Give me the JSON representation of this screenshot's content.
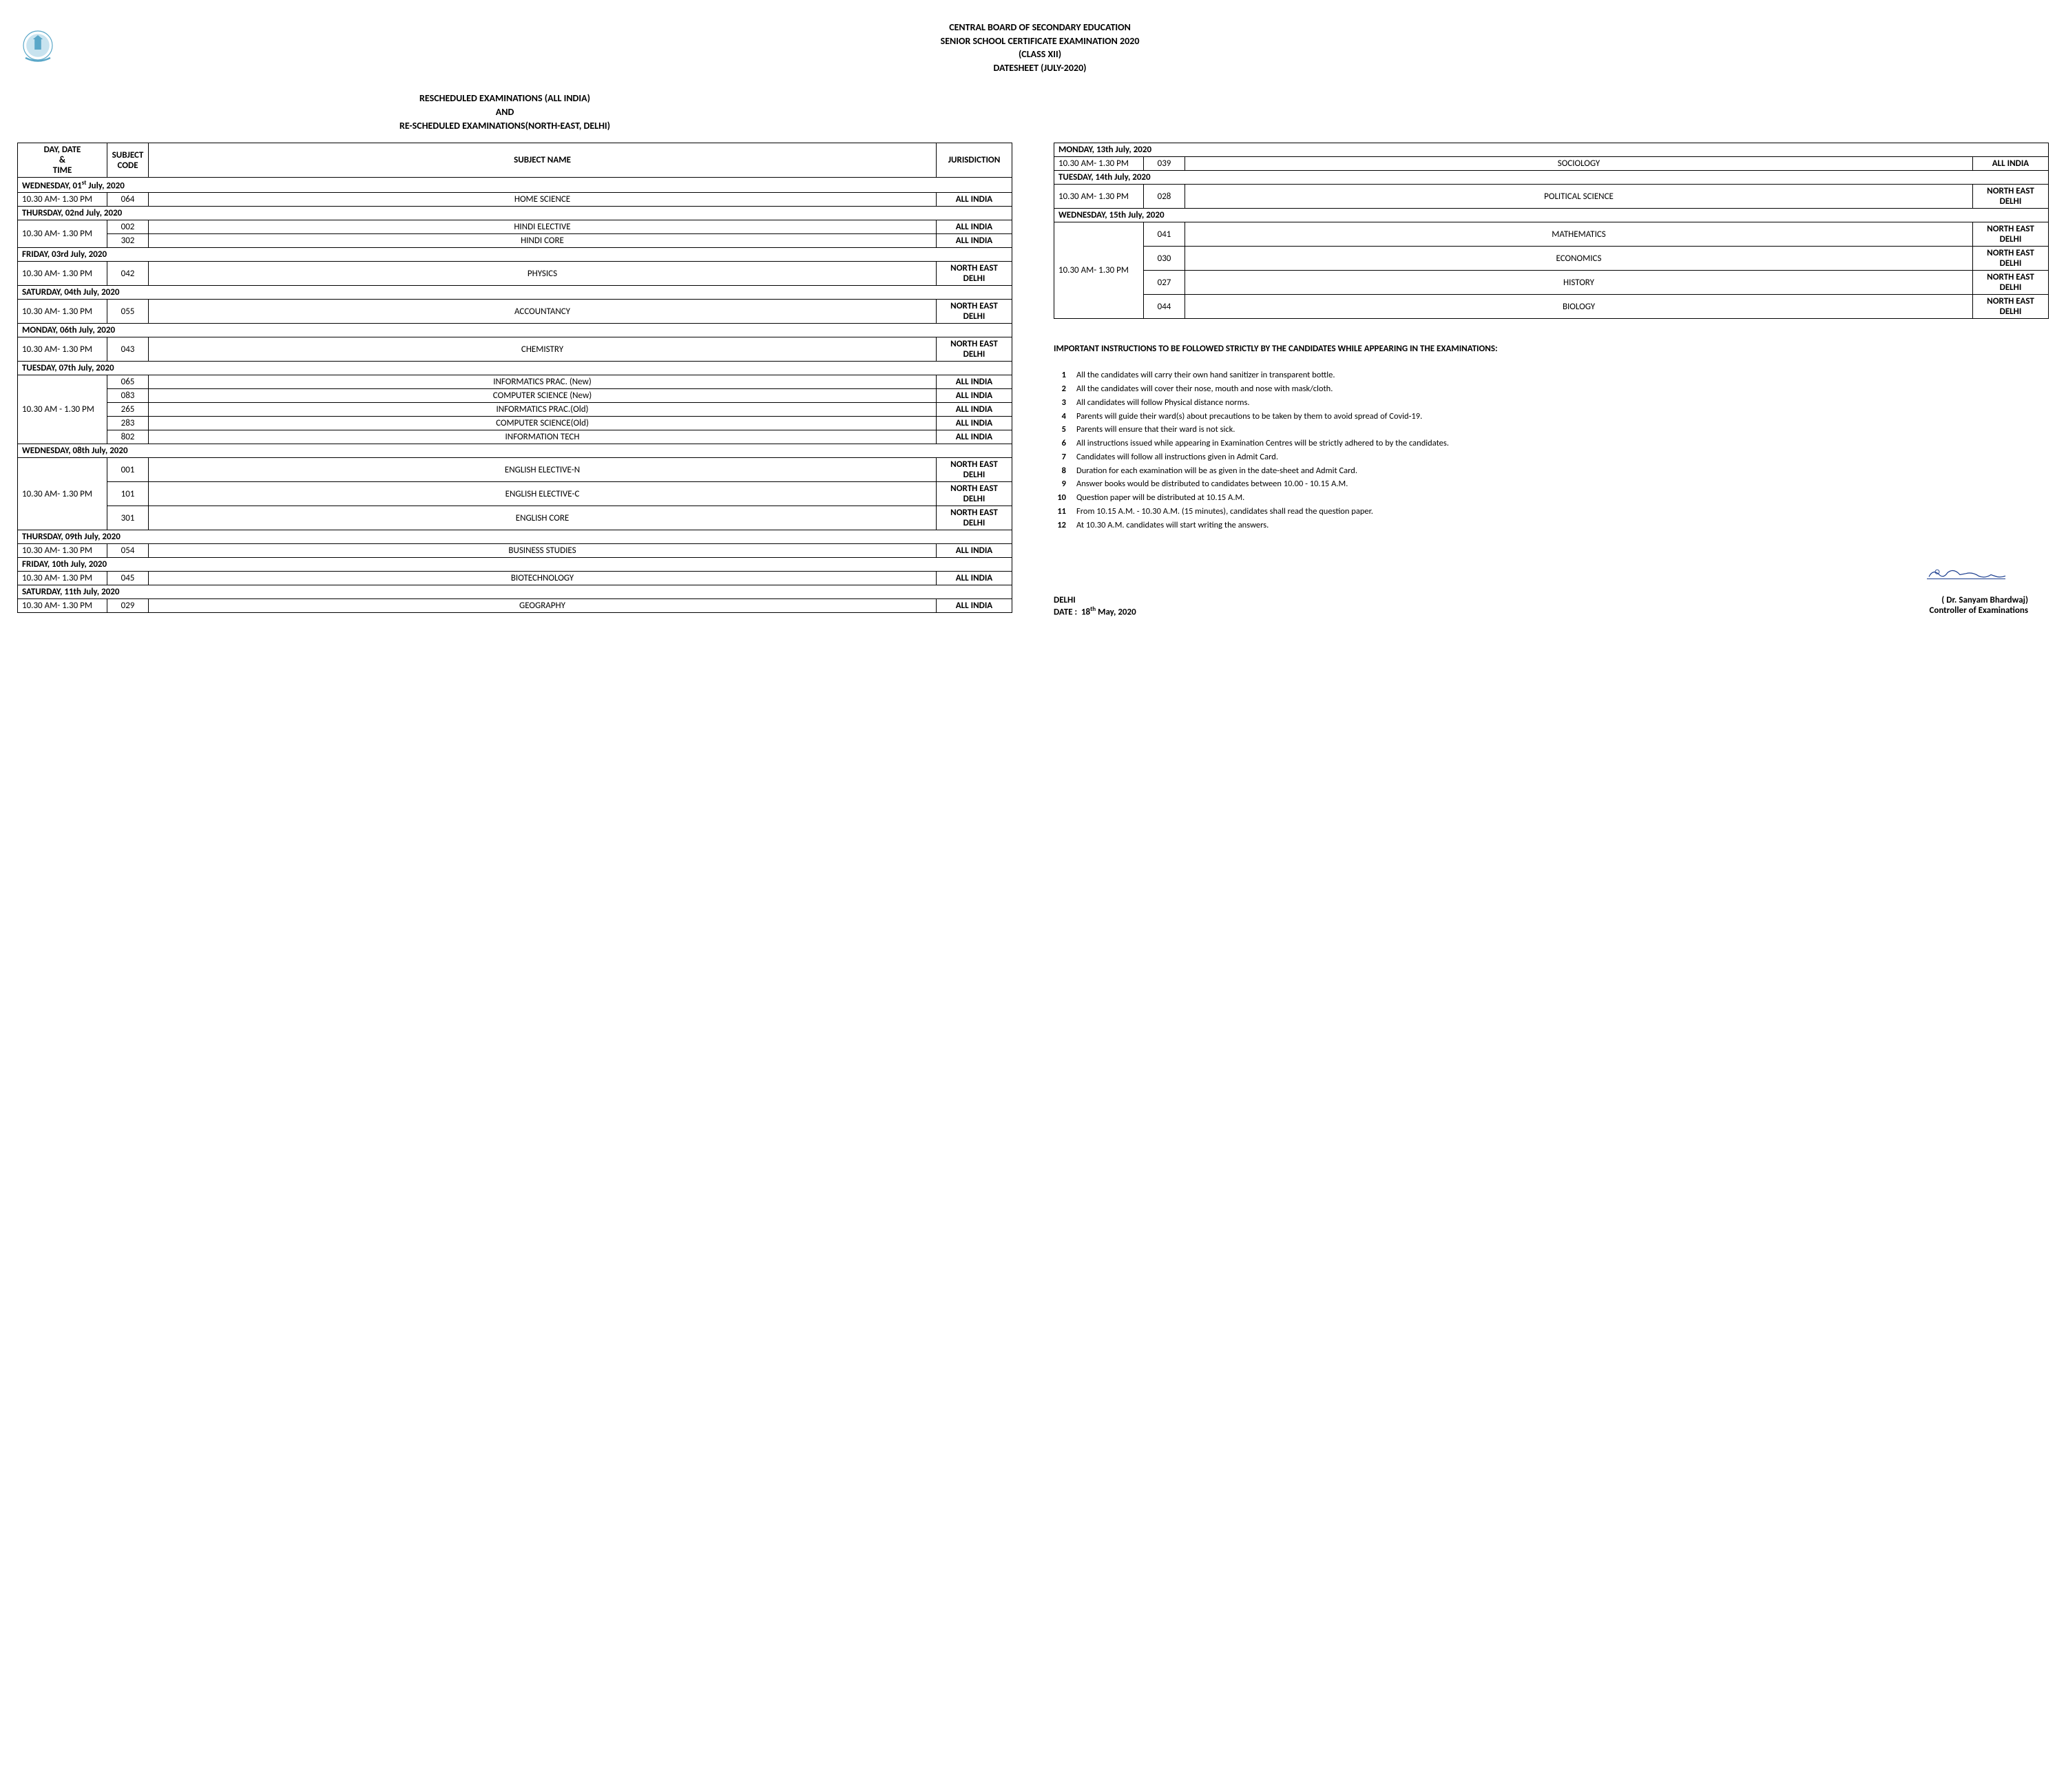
{
  "header": {
    "line1": "CENTRAL BOARD OF SECONDARY EDUCATION",
    "line2": "SENIOR SCHOOL CERTIFICATE EXAMINATION 2020",
    "line3": "(CLASS XII)",
    "line4": "DATESHEET (JULY-2020)"
  },
  "subheader": {
    "line1": "RESCHEDULED EXAMINATIONS (ALL INDIA)",
    "line2": "AND",
    "line3": "RE-SCHEDULED EXAMINATIONS(NORTH-EAST, DELHI)"
  },
  "columns": [
    "DAY, DATE & TIME",
    "SUBJECT CODE",
    "SUBJECT NAME",
    "JURISDICTION"
  ],
  "jurisdictions": {
    "all_india": "ALL INDIA",
    "ne_delhi_1": "NORTH EAST",
    "ne_delhi_2": "DELHI"
  },
  "timeslot": "10.30 AM- 1.30 PM",
  "timeslot2": "10.30 AM - 1.30 PM",
  "schedule_left": [
    {
      "type": "day",
      "label": "WEDNESDAY, 01",
      "sup": "st",
      "suffix": " July, 2020"
    },
    {
      "type": "row",
      "rowspan": 1,
      "time": "10.30 AM- 1.30 PM",
      "code": "064",
      "subject": "HOME SCIENCE",
      "juris": "ALL INDIA"
    },
    {
      "type": "day",
      "label": "THURSDAY, 02nd July, 2020"
    },
    {
      "type": "row",
      "rowspan": 2,
      "time": "10.30 AM- 1.30 PM",
      "code": "002",
      "subject": "HINDI ELECTIVE",
      "juris": "ALL INDIA"
    },
    {
      "type": "rowcont",
      "code": "302",
      "subject": "HINDI CORE",
      "juris": "ALL INDIA"
    },
    {
      "type": "day",
      "label": "FRIDAY, 03rd July, 2020"
    },
    {
      "type": "row",
      "rowspan": 1,
      "time": "10.30 AM- 1.30 PM",
      "code": "042",
      "subject": "PHYSICS",
      "juris": "NE"
    },
    {
      "type": "day",
      "label": "SATURDAY, 04th July, 2020"
    },
    {
      "type": "row",
      "rowspan": 1,
      "time": "10.30 AM- 1.30 PM",
      "code": "055",
      "subject": "ACCOUNTANCY",
      "juris": "NE"
    },
    {
      "type": "day",
      "label": "MONDAY, 06th July, 2020"
    },
    {
      "type": "row",
      "rowspan": 1,
      "time": "10.30 AM- 1.30 PM",
      "code": "043",
      "subject": "CHEMISTRY",
      "juris": "NE"
    },
    {
      "type": "day",
      "label": "TUESDAY, 07th July, 2020"
    },
    {
      "type": "row",
      "rowspan": 5,
      "time": "10.30 AM - 1.30 PM",
      "code": "065",
      "subject": "INFORMATICS PRAC. (New)",
      "juris": "ALL INDIA"
    },
    {
      "type": "rowcont",
      "code": "083",
      "subject": "COMPUTER SCIENCE (New)",
      "juris": "ALL INDIA"
    },
    {
      "type": "rowcont",
      "code": "265",
      "subject": "INFORMATICS PRAC.(Old)",
      "juris": "ALL INDIA"
    },
    {
      "type": "rowcont",
      "code": "283",
      "subject": "COMPUTER SCIENCE(Old)",
      "juris": "ALL INDIA"
    },
    {
      "type": "rowcont",
      "code": "802",
      "subject": "INFORMATION TECH",
      "juris": "ALL INDIA"
    },
    {
      "type": "day",
      "label": "WEDNESDAY, 08th July, 2020"
    },
    {
      "type": "row",
      "rowspan": 3,
      "time": "10.30 AM- 1.30 PM",
      "code": "001",
      "subject": "ENGLISH ELECTIVE-N",
      "juris": "NE"
    },
    {
      "type": "rowcont",
      "code": "101",
      "subject": "ENGLISH ELECTIVE-C",
      "juris": "NE"
    },
    {
      "type": "rowcont",
      "code": "301",
      "subject": "ENGLISH CORE",
      "juris": "NE"
    },
    {
      "type": "day",
      "label": "THURSDAY, 09th July, 2020"
    },
    {
      "type": "row",
      "rowspan": 1,
      "time": "10.30 AM- 1.30 PM",
      "code": "054",
      "subject": "BUSINESS STUDIES",
      "juris": "ALL INDIA"
    },
    {
      "type": "day",
      "label": "FRIDAY, 10th July, 2020"
    },
    {
      "type": "row",
      "rowspan": 1,
      "time": "10.30 AM- 1.30 PM",
      "code": "045",
      "subject": "BIOTECHNOLOGY",
      "juris": "ALL INDIA"
    },
    {
      "type": "day",
      "label": "SATURDAY, 11th July, 2020"
    },
    {
      "type": "row",
      "rowspan": 1,
      "time": "10.30 AM- 1.30 PM",
      "code": "029",
      "subject": "GEOGRAPHY",
      "juris": "ALL INDIA"
    }
  ],
  "schedule_right": [
    {
      "type": "day",
      "label": "MONDAY, 13th July, 2020"
    },
    {
      "type": "row",
      "rowspan": 1,
      "time": "10.30 AM- 1.30 PM",
      "code": "039",
      "subject": "SOCIOLOGY",
      "juris": "ALL INDIA"
    },
    {
      "type": "day",
      "label": "TUESDAY, 14th July, 2020"
    },
    {
      "type": "row",
      "rowspan": 1,
      "time": "10.30 AM- 1.30 PM",
      "code": "028",
      "subject": "POLITICAL SCIENCE",
      "juris": "NE"
    },
    {
      "type": "day",
      "label": "WEDNESDAY, 15th July, 2020"
    },
    {
      "type": "row",
      "rowspan": 4,
      "time": "10.30 AM- 1.30 PM",
      "code": "041",
      "subject": "MATHEMATICS",
      "juris": "NE"
    },
    {
      "type": "rowcont",
      "code": "030",
      "subject": "ECONOMICS",
      "juris": "NE"
    },
    {
      "type": "rowcont",
      "code": "027",
      "subject": "HISTORY",
      "juris": "NE"
    },
    {
      "type": "rowcont",
      "code": "044",
      "subject": "BIOLOGY",
      "juris": "NE"
    }
  ],
  "instructions_title": "IMPORTANT INSTRUCTIONS TO BE FOLLOWED STRICTLY BY THE CANDIDATES WHILE APPEARING IN THE EXAMINATIONS:",
  "instructions": [
    "All the candidates will carry their own hand sanitizer in transparent bottle.",
    "All the candidates will cover their nose, mouth and nose with mask/cloth.",
    "All candidates will follow Physical distance norms.",
    "Parents will guide their ward(s) about precautions to be taken by them to avoid spread of Covid-19.",
    "Parents will ensure that their ward is not sick.",
    "All instructions issued while appearing in Examination Centres will be strictly adhered to by the candidates.",
    "Candidates will follow all instructions given in Admit Card.",
    "Duration for each examination will be as given in the date-sheet and Admit Card.",
    "Answer books would be distributed to candidates between 10.00 - 10.15 A.M.",
    "Question paper will be distributed at 10.15 A.M.",
    "From 10.15 A.M. - 10.30 A.M. (15 minutes), candidates shall read the question paper.",
    "At 10.30 A.M. candidates will start writing the answers."
  ],
  "signature": {
    "place": "DELHI",
    "date_label": "DATE :",
    "date": "18",
    "date_sup": "th",
    "date_suffix": " May, 2020",
    "name": "( Dr. Sanyam Bhardwaj)",
    "title": "Controller of Examinations"
  },
  "colors": {
    "logo_blue": "#5aa7c8",
    "sig_blue": "#1a3d8f",
    "text": "#000000",
    "border": "#000000"
  }
}
